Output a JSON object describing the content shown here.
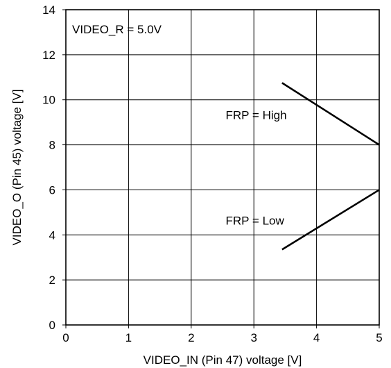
{
  "chart_data": {
    "type": "line",
    "xlabel": "VIDEO_IN (Pin 47) voltage [V]",
    "ylabel": "VIDEO_O (Pin 45) voltage [V]",
    "xlim": [
      0,
      5
    ],
    "ylim": [
      0,
      14
    ],
    "xticks": [
      0,
      1,
      2,
      3,
      4,
      5
    ],
    "yticks": [
      0,
      2,
      4,
      6,
      8,
      10,
      12,
      14
    ],
    "grid": true,
    "series": [
      {
        "name": "FRP = High",
        "x": [
          3.45,
          5.0
        ],
        "y": [
          10.75,
          8.0
        ]
      },
      {
        "name": "FRP = Low",
        "x": [
          3.45,
          5.0
        ],
        "y": [
          3.35,
          6.0
        ]
      }
    ],
    "annotations": [
      {
        "text": "VIDEO_R = 5.0V",
        "x": 0.1,
        "y": 12.95
      },
      {
        "text": "FRP = High",
        "x": 2.55,
        "y": 9.15
      },
      {
        "text": "FRP = Low",
        "x": 2.55,
        "y": 4.45
      }
    ]
  }
}
